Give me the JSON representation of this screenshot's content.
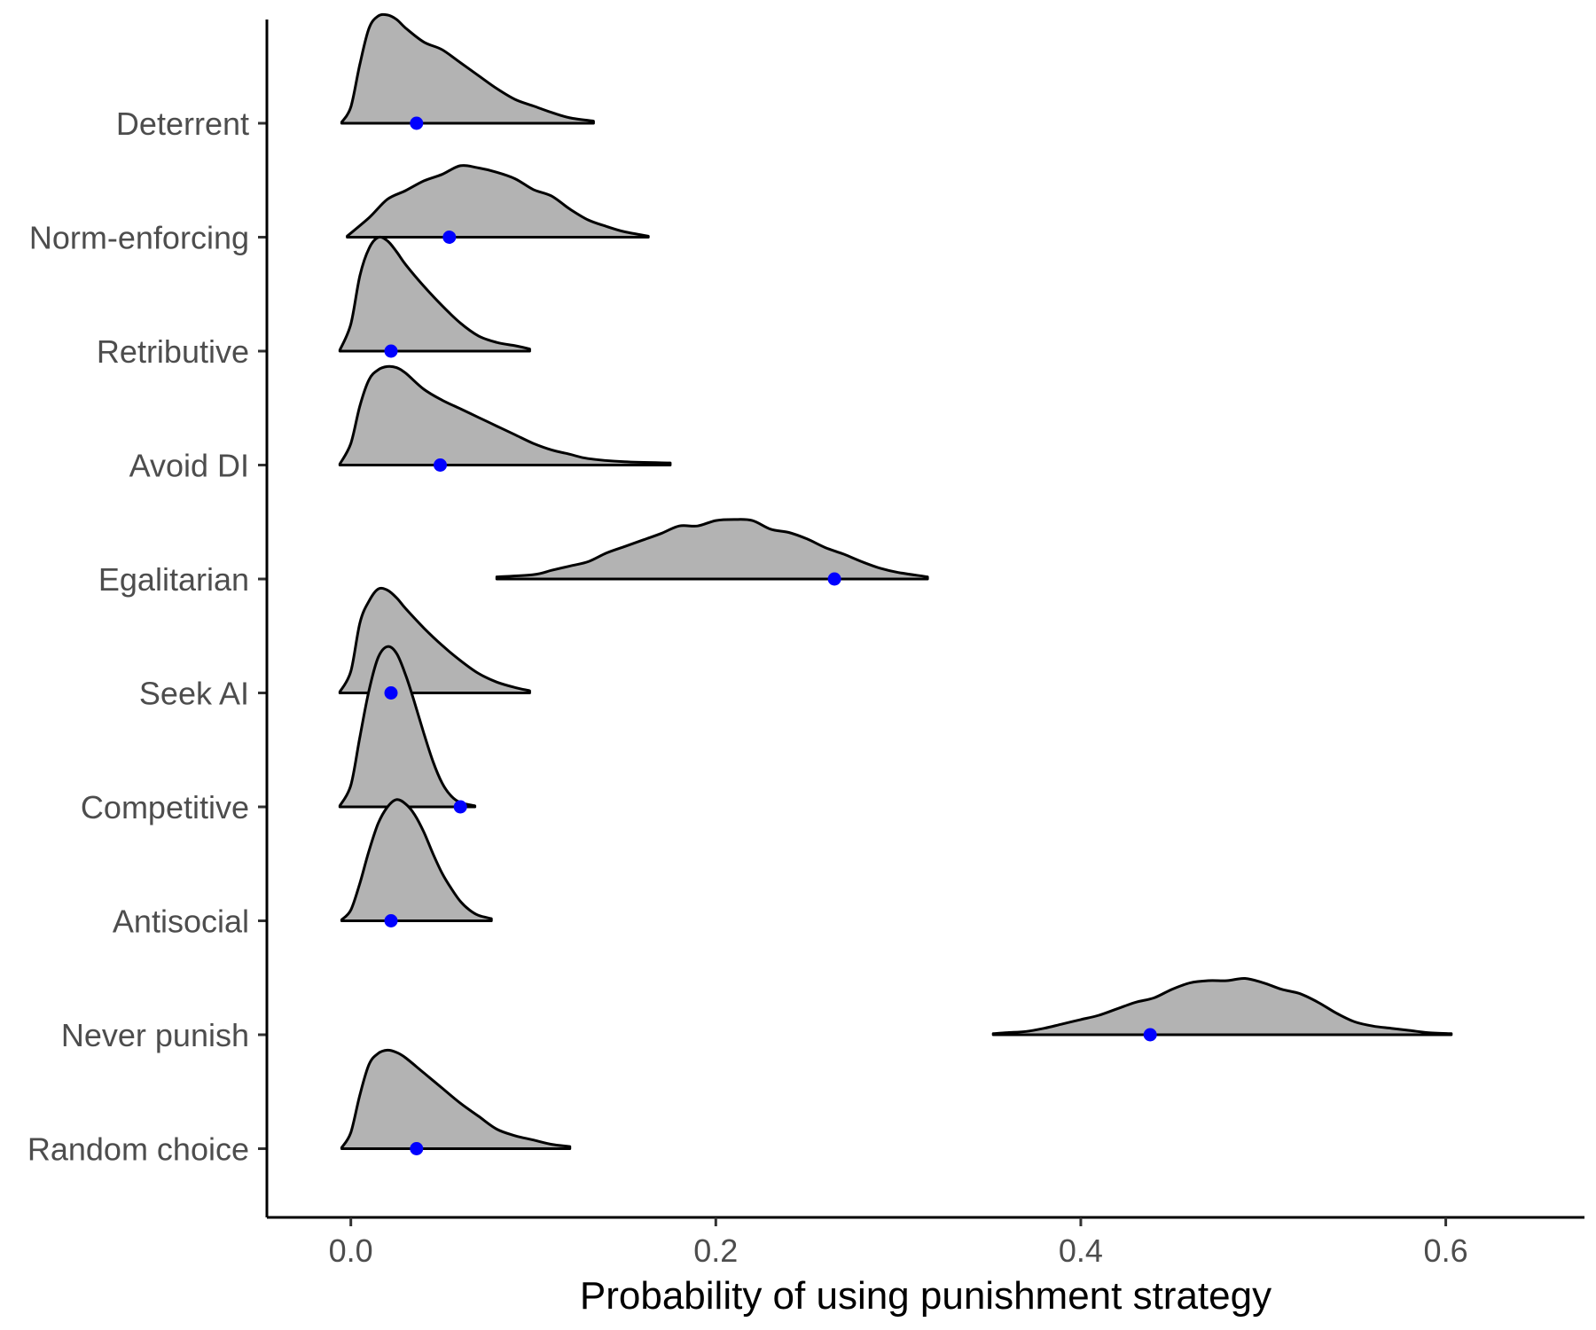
{
  "chart_data": {
    "type": "ridgeline",
    "title": "",
    "xlabel": "Probability of using punishment strategy",
    "ylabel": "",
    "xlim": [
      -0.046,
      0.676
    ],
    "x_ticks": [
      0.0,
      0.2,
      0.4,
      0.6
    ],
    "x_tick_labels": [
      "0.0",
      "0.2",
      "0.4",
      "0.6"
    ],
    "categories": [
      "Deterrent",
      "Norm-enforcing",
      "Retributive",
      "Avoid DI",
      "Egalitarian",
      "Seek AI",
      "Competitive",
      "Antisocial",
      "Never punish",
      "Random choice"
    ],
    "grid": false,
    "legend": "none",
    "colors": {
      "fill": "#b3b3b3",
      "outline": "#000000",
      "point": "#0000ff",
      "axis_text": "#4d4d4d"
    },
    "density_scale": 0.95,
    "series": [
      {
        "category": "Deterrent",
        "point": 0.036,
        "x": [
          -0.005,
          0.0,
          0.005,
          0.01,
          0.015,
          0.02,
          0.025,
          0.03,
          0.04,
          0.05,
          0.06,
          0.07,
          0.08,
          0.09,
          0.1,
          0.11,
          0.12,
          0.133
        ],
        "d": [
          0.01,
          0.15,
          0.55,
          0.88,
          0.99,
          1.0,
          0.96,
          0.88,
          0.75,
          0.68,
          0.56,
          0.44,
          0.32,
          0.22,
          0.16,
          0.1,
          0.05,
          0.02
        ]
      },
      {
        "category": "Norm-enforcing",
        "point": 0.054,
        "x": [
          -0.002,
          0.01,
          0.02,
          0.03,
          0.04,
          0.05,
          0.06,
          0.07,
          0.08,
          0.09,
          0.1,
          0.11,
          0.12,
          0.13,
          0.14,
          0.15,
          0.163
        ],
        "d": [
          0.01,
          0.18,
          0.35,
          0.43,
          0.52,
          0.58,
          0.66,
          0.64,
          0.6,
          0.54,
          0.44,
          0.38,
          0.26,
          0.16,
          0.1,
          0.05,
          0.01
        ]
      },
      {
        "category": "Retributive",
        "point": 0.022,
        "x": [
          -0.006,
          0.0,
          0.005,
          0.01,
          0.015,
          0.02,
          0.025,
          0.03,
          0.04,
          0.05,
          0.06,
          0.07,
          0.08,
          0.09,
          0.098
        ],
        "d": [
          0.01,
          0.25,
          0.7,
          0.95,
          1.05,
          1.02,
          0.92,
          0.8,
          0.6,
          0.42,
          0.26,
          0.14,
          0.08,
          0.05,
          0.02
        ]
      },
      {
        "category": "Avoid DI",
        "point": 0.049,
        "x": [
          -0.006,
          0.0,
          0.005,
          0.01,
          0.015,
          0.02,
          0.025,
          0.03,
          0.04,
          0.05,
          0.06,
          0.07,
          0.08,
          0.09,
          0.1,
          0.11,
          0.12,
          0.13,
          0.15,
          0.175
        ],
        "d": [
          0.01,
          0.2,
          0.55,
          0.79,
          0.88,
          0.91,
          0.9,
          0.85,
          0.7,
          0.6,
          0.52,
          0.44,
          0.36,
          0.28,
          0.2,
          0.14,
          0.1,
          0.06,
          0.03,
          0.02
        ]
      },
      {
        "category": "Egalitarian",
        "point": 0.265,
        "x": [
          0.08,
          0.1,
          0.11,
          0.12,
          0.13,
          0.14,
          0.15,
          0.16,
          0.17,
          0.18,
          0.19,
          0.2,
          0.21,
          0.22,
          0.23,
          0.24,
          0.25,
          0.26,
          0.27,
          0.28,
          0.29,
          0.3,
          0.316
        ],
        "d": [
          0.02,
          0.04,
          0.08,
          0.12,
          0.16,
          0.24,
          0.3,
          0.36,
          0.42,
          0.49,
          0.49,
          0.54,
          0.55,
          0.54,
          0.46,
          0.43,
          0.37,
          0.29,
          0.23,
          0.16,
          0.1,
          0.06,
          0.02
        ]
      },
      {
        "category": "Seek AI",
        "point": 0.022,
        "x": [
          -0.006,
          0.0,
          0.005,
          0.01,
          0.015,
          0.02,
          0.025,
          0.03,
          0.04,
          0.05,
          0.06,
          0.07,
          0.08,
          0.09,
          0.098
        ],
        "d": [
          0.01,
          0.2,
          0.65,
          0.85,
          0.96,
          0.95,
          0.88,
          0.78,
          0.6,
          0.44,
          0.3,
          0.18,
          0.1,
          0.05,
          0.02
        ]
      },
      {
        "category": "Competitive",
        "point": 0.06,
        "x": [
          -0.006,
          0.0,
          0.005,
          0.01,
          0.015,
          0.02,
          0.025,
          0.03,
          0.035,
          0.04,
          0.045,
          0.05,
          0.055,
          0.06,
          0.068
        ],
        "d": [
          0.01,
          0.2,
          0.65,
          1.08,
          1.38,
          1.48,
          1.42,
          1.22,
          0.96,
          0.68,
          0.42,
          0.22,
          0.1,
          0.04,
          0.01
        ]
      },
      {
        "category": "Antisocial",
        "point": 0.022,
        "x": [
          -0.005,
          0.0,
          0.005,
          0.01,
          0.015,
          0.02,
          0.025,
          0.03,
          0.035,
          0.04,
          0.045,
          0.05,
          0.055,
          0.06,
          0.065,
          0.07,
          0.077
        ],
        "d": [
          0.01,
          0.1,
          0.35,
          0.65,
          0.9,
          1.05,
          1.12,
          1.08,
          0.98,
          0.82,
          0.62,
          0.44,
          0.3,
          0.18,
          0.1,
          0.05,
          0.02
        ]
      },
      {
        "category": "Never punish",
        "point": 0.438,
        "x": [
          0.352,
          0.36,
          0.37,
          0.38,
          0.39,
          0.4,
          0.41,
          0.42,
          0.43,
          0.44,
          0.45,
          0.46,
          0.47,
          0.48,
          0.49,
          0.5,
          0.51,
          0.52,
          0.53,
          0.54,
          0.55,
          0.56,
          0.57,
          0.58,
          0.59,
          0.603
        ],
        "d": [
          0.01,
          0.02,
          0.03,
          0.06,
          0.1,
          0.14,
          0.18,
          0.24,
          0.3,
          0.34,
          0.42,
          0.48,
          0.5,
          0.5,
          0.52,
          0.48,
          0.42,
          0.38,
          0.3,
          0.2,
          0.12,
          0.08,
          0.06,
          0.04,
          0.02,
          0.01
        ]
      },
      {
        "category": "Random choice",
        "point": 0.036,
        "x": [
          -0.005,
          0.0,
          0.005,
          0.01,
          0.015,
          0.02,
          0.025,
          0.03,
          0.04,
          0.05,
          0.06,
          0.07,
          0.08,
          0.09,
          0.1,
          0.11,
          0.12
        ],
        "d": [
          0.01,
          0.15,
          0.5,
          0.78,
          0.88,
          0.91,
          0.89,
          0.84,
          0.7,
          0.56,
          0.42,
          0.3,
          0.18,
          0.12,
          0.08,
          0.04,
          0.02
        ]
      }
    ]
  }
}
